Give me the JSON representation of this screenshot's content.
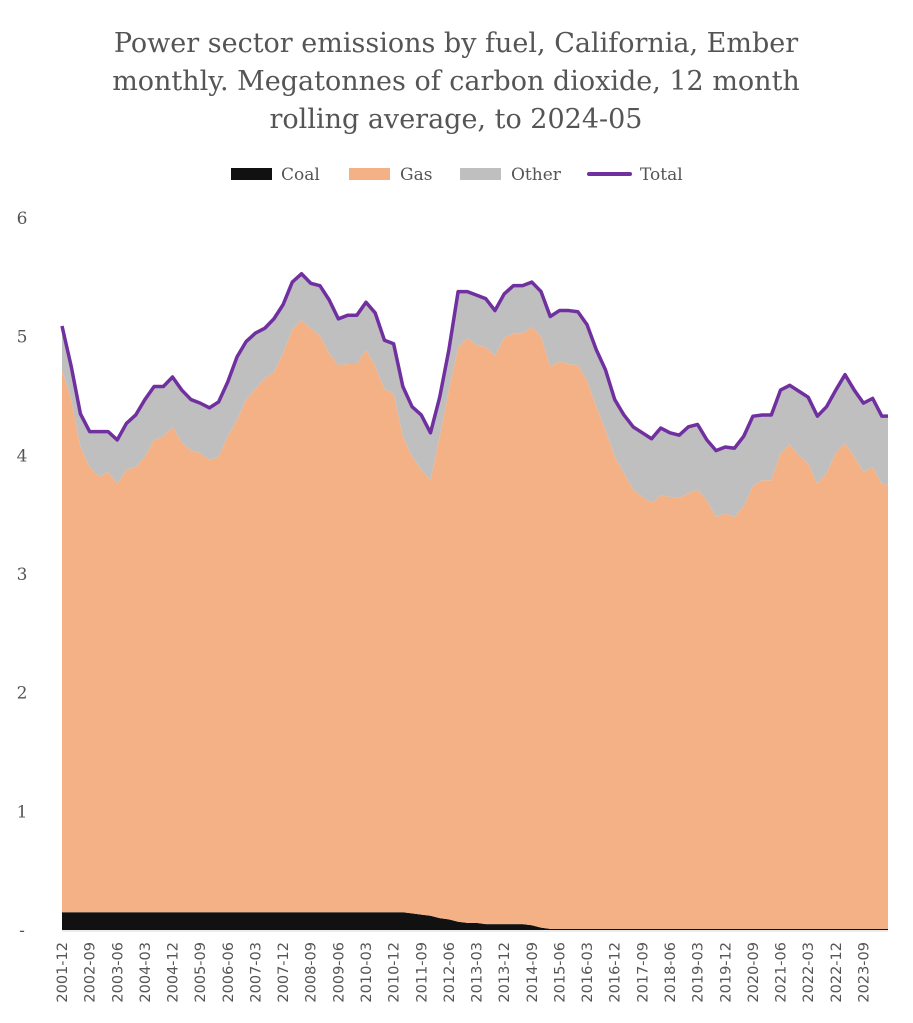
{
  "chart_data": {
    "type": "area",
    "stacked": true,
    "title_lines": [
      "Power sector emissions by fuel, California, Ember",
      "monthly. Megatonnes of carbon dioxide, 12 month",
      "rolling average, to 2024-05"
    ],
    "xlabel": "",
    "ylabel": "",
    "ylim": [
      0,
      6
    ],
    "yticks": [
      0,
      1,
      2,
      3,
      4,
      5,
      6
    ],
    "ytick_labels": [
      "-",
      "1",
      "2",
      "3",
      "4",
      "5",
      "6"
    ],
    "xticks": [
      "2001-12",
      "2002-09",
      "2003-06",
      "2004-03",
      "2004-12",
      "2005-09",
      "2006-06",
      "2007-03",
      "2007-12",
      "2008-09",
      "2009-06",
      "2010-03",
      "2010-12",
      "2011-09",
      "2012-06",
      "2013-03",
      "2013-12",
      "2014-09",
      "2015-06",
      "2016-03",
      "2016-12",
      "2017-09",
      "2018-06",
      "2019-03",
      "2019-12",
      "2020-09",
      "2021-06",
      "2022-03",
      "2022-12",
      "2023-09"
    ],
    "legend_position": "top-center",
    "grid": false,
    "x": [
      "2001-12",
      "2002-03",
      "2002-06",
      "2002-09",
      "2002-12",
      "2003-03",
      "2003-06",
      "2003-09",
      "2003-12",
      "2004-03",
      "2004-06",
      "2004-09",
      "2004-12",
      "2005-03",
      "2005-06",
      "2005-09",
      "2005-12",
      "2006-03",
      "2006-06",
      "2006-09",
      "2006-12",
      "2007-03",
      "2007-06",
      "2007-09",
      "2007-12",
      "2008-03",
      "2008-06",
      "2008-09",
      "2008-12",
      "2009-03",
      "2009-06",
      "2009-09",
      "2009-12",
      "2010-03",
      "2010-06",
      "2010-09",
      "2010-12",
      "2011-03",
      "2011-06",
      "2011-09",
      "2011-12",
      "2012-03",
      "2012-06",
      "2012-09",
      "2012-12",
      "2013-03",
      "2013-06",
      "2013-09",
      "2013-12",
      "2014-03",
      "2014-06",
      "2014-09",
      "2014-12",
      "2015-03",
      "2015-06",
      "2015-09",
      "2015-12",
      "2016-03",
      "2016-06",
      "2016-09",
      "2016-12",
      "2017-03",
      "2017-06",
      "2017-09",
      "2017-12",
      "2018-03",
      "2018-06",
      "2018-09",
      "2018-12",
      "2019-03",
      "2019-06",
      "2019-09",
      "2019-12",
      "2020-03",
      "2020-06",
      "2020-09",
      "2020-12",
      "2021-03",
      "2021-06",
      "2021-09",
      "2021-12",
      "2022-03",
      "2022-06",
      "2022-09",
      "2022-12",
      "2023-03",
      "2023-06",
      "2023-09",
      "2023-12",
      "2024-03",
      "2024-05"
    ],
    "series": [
      {
        "name": "Coal",
        "color": "#111111",
        "values": [
          0.15,
          0.15,
          0.15,
          0.15,
          0.15,
          0.15,
          0.15,
          0.15,
          0.15,
          0.15,
          0.15,
          0.15,
          0.15,
          0.15,
          0.15,
          0.15,
          0.15,
          0.15,
          0.15,
          0.15,
          0.15,
          0.15,
          0.15,
          0.15,
          0.15,
          0.15,
          0.15,
          0.15,
          0.15,
          0.15,
          0.15,
          0.15,
          0.15,
          0.15,
          0.15,
          0.15,
          0.15,
          0.15,
          0.14,
          0.13,
          0.12,
          0.1,
          0.09,
          0.07,
          0.06,
          0.06,
          0.05,
          0.05,
          0.05,
          0.05,
          0.05,
          0.04,
          0.02,
          0.01,
          0.01,
          0.01,
          0.01,
          0.01,
          0.01,
          0.01,
          0.01,
          0.01,
          0.01,
          0.01,
          0.01,
          0.01,
          0.01,
          0.01,
          0.01,
          0.01,
          0.01,
          0.01,
          0.01,
          0.01,
          0.01,
          0.01,
          0.01,
          0.01,
          0.01,
          0.01,
          0.01,
          0.01,
          0.01,
          0.01,
          0.01,
          0.01,
          0.01,
          0.01,
          0.01,
          0.01,
          0.01
        ]
      },
      {
        "name": "Gas",
        "color": "#F3B185",
        "values": [
          4.57,
          4.32,
          3.92,
          3.75,
          3.67,
          3.71,
          3.61,
          3.73,
          3.75,
          3.84,
          3.98,
          4.01,
          4.09,
          3.96,
          3.89,
          3.87,
          3.81,
          3.84,
          4.01,
          4.15,
          4.32,
          4.41,
          4.5,
          4.55,
          4.71,
          4.91,
          4.99,
          4.92,
          4.86,
          4.71,
          4.61,
          4.62,
          4.62,
          4.74,
          4.6,
          4.41,
          4.37,
          4.01,
          3.85,
          3.75,
          3.67,
          4.06,
          4.46,
          4.84,
          4.93,
          4.87,
          4.86,
          4.79,
          4.94,
          4.98,
          4.98,
          5.04,
          4.98,
          4.74,
          4.78,
          4.76,
          4.75,
          4.62,
          4.4,
          4.2,
          3.98,
          3.84,
          3.7,
          3.64,
          3.59,
          3.65,
          3.64,
          3.63,
          3.67,
          3.7,
          3.61,
          3.47,
          3.5,
          3.47,
          3.56,
          3.73,
          3.78,
          3.78,
          4.01,
          4.08,
          3.99,
          3.92,
          3.75,
          3.84,
          4.01,
          4.09,
          3.98,
          3.85,
          3.89,
          3.75,
          3.74
        ]
      },
      {
        "name": "Other",
        "color": "#BFBFBF",
        "values": [
          0.37,
          0.28,
          0.28,
          0.3,
          0.38,
          0.34,
          0.37,
          0.39,
          0.44,
          0.48,
          0.45,
          0.42,
          0.42,
          0.44,
          0.43,
          0.42,
          0.44,
          0.46,
          0.46,
          0.53,
          0.49,
          0.47,
          0.42,
          0.45,
          0.41,
          0.4,
          0.39,
          0.38,
          0.42,
          0.45,
          0.39,
          0.41,
          0.41,
          0.4,
          0.45,
          0.41,
          0.42,
          0.42,
          0.42,
          0.46,
          0.4,
          0.33,
          0.34,
          0.47,
          0.39,
          0.42,
          0.41,
          0.38,
          0.37,
          0.4,
          0.4,
          0.38,
          0.38,
          0.42,
          0.43,
          0.45,
          0.45,
          0.47,
          0.48,
          0.51,
          0.48,
          0.49,
          0.53,
          0.54,
          0.54,
          0.57,
          0.54,
          0.53,
          0.56,
          0.55,
          0.51,
          0.56,
          0.56,
          0.58,
          0.59,
          0.59,
          0.55,
          0.55,
          0.53,
          0.5,
          0.54,
          0.56,
          0.57,
          0.56,
          0.53,
          0.58,
          0.56,
          0.58,
          0.58,
          0.57,
          0.58
        ]
      }
    ],
    "total": {
      "name": "Total",
      "color": "#7030A0"
    }
  }
}
